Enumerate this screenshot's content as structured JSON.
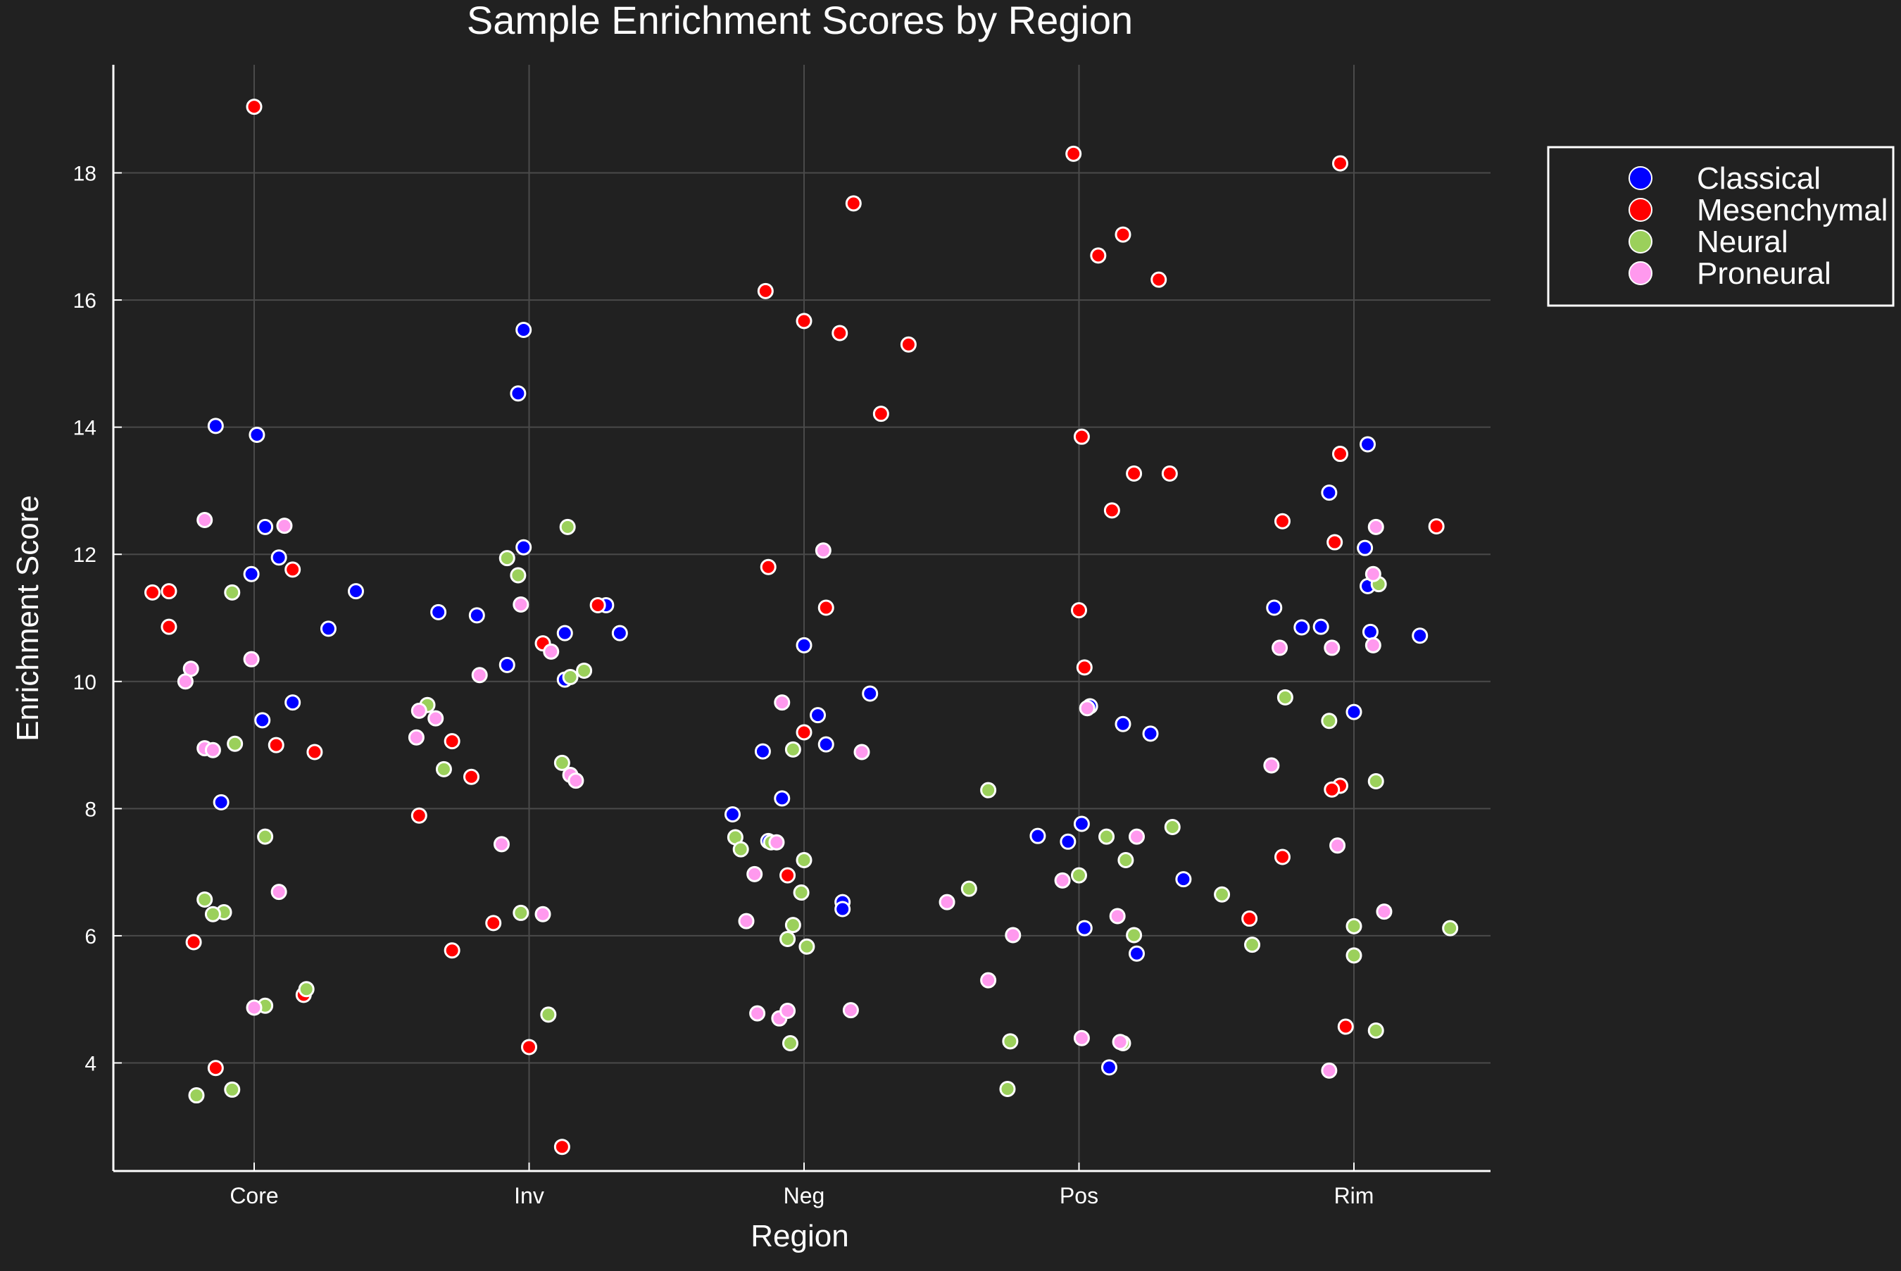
{
  "chart_data": {
    "type": "scatter",
    "title": "Sample Enrichment Scores by Region",
    "xlabel": "Region",
    "ylabel": "Enrichment Score",
    "categories": [
      "Core",
      "Inv",
      "Neg",
      "Pos",
      "Rim"
    ],
    "ylim": [
      2.3,
      19.7
    ],
    "yticks": [
      4,
      6,
      8,
      10,
      12,
      14,
      16,
      18
    ],
    "grid": true,
    "legend_position": "top-right",
    "series": [
      {
        "name": "Classical",
        "color": "#0000ff",
        "points": [
          {
            "x": -0.14,
            "y": 14.02
          },
          {
            "x": 0.01,
            "y": 13.88
          },
          {
            "x": 0.04,
            "y": 12.43
          },
          {
            "x": 0.09,
            "y": 11.95
          },
          {
            "x": -0.01,
            "y": 11.69
          },
          {
            "x": 0.37,
            "y": 11.42
          },
          {
            "x": 0.27,
            "y": 10.83
          },
          {
            "x": 0.14,
            "y": 9.67
          },
          {
            "x": 0.03,
            "y": 9.39
          },
          {
            "x": -0.12,
            "y": 8.1
          },
          {
            "x": 0.98,
            "y": 15.53
          },
          {
            "x": 0.96,
            "y": 14.53
          },
          {
            "x": 0.98,
            "y": 12.11
          },
          {
            "x": 1.28,
            "y": 11.2
          },
          {
            "x": 0.67,
            "y": 11.09
          },
          {
            "x": 0.81,
            "y": 11.04
          },
          {
            "x": 1.13,
            "y": 10.76
          },
          {
            "x": 1.33,
            "y": 10.76
          },
          {
            "x": 0.92,
            "y": 10.26
          },
          {
            "x": 1.13,
            "y": 10.03
          },
          {
            "x": 2.0,
            "y": 10.57
          },
          {
            "x": 2.24,
            "y": 9.81
          },
          {
            "x": 2.05,
            "y": 9.47
          },
          {
            "x": 2.08,
            "y": 9.01
          },
          {
            "x": 1.85,
            "y": 8.9
          },
          {
            "x": 1.92,
            "y": 8.16
          },
          {
            "x": 1.74,
            "y": 7.91
          },
          {
            "x": 1.87,
            "y": 7.49
          },
          {
            "x": 2.14,
            "y": 6.53
          },
          {
            "x": 2.14,
            "y": 6.42
          },
          {
            "x": 3.04,
            "y": 9.61
          },
          {
            "x": 3.16,
            "y": 9.33
          },
          {
            "x": 3.26,
            "y": 9.18
          },
          {
            "x": 3.01,
            "y": 7.76
          },
          {
            "x": 2.85,
            "y": 7.57
          },
          {
            "x": 2.96,
            "y": 7.48
          },
          {
            "x": 3.38,
            "y": 6.89
          },
          {
            "x": 3.02,
            "y": 6.12
          },
          {
            "x": 3.21,
            "y": 5.72
          },
          {
            "x": 3.11,
            "y": 3.93
          },
          {
            "x": 4.05,
            "y": 13.73
          },
          {
            "x": 3.91,
            "y": 12.97
          },
          {
            "x": 4.04,
            "y": 12.1
          },
          {
            "x": 4.05,
            "y": 11.5
          },
          {
            "x": 3.71,
            "y": 11.16
          },
          {
            "x": 3.81,
            "y": 10.85
          },
          {
            "x": 3.88,
            "y": 10.86
          },
          {
            "x": 4.06,
            "y": 10.78
          },
          {
            "x": 4.24,
            "y": 10.72
          },
          {
            "x": 4.0,
            "y": 9.52
          }
        ]
      },
      {
        "name": "Mesenchymal",
        "color": "#ff0000",
        "points": [
          {
            "x": 0.0,
            "y": 19.04
          },
          {
            "x": 0.14,
            "y": 11.76
          },
          {
            "x": -0.37,
            "y": 11.4
          },
          {
            "x": -0.31,
            "y": 11.42
          },
          {
            "x": -0.31,
            "y": 10.86
          },
          {
            "x": 0.08,
            "y": 9.0
          },
          {
            "x": 0.22,
            "y": 8.89
          },
          {
            "x": -0.22,
            "y": 5.9
          },
          {
            "x": 0.18,
            "y": 5.07
          },
          {
            "x": -0.14,
            "y": 3.92
          },
          {
            "x": 1.25,
            "y": 11.2
          },
          {
            "x": 1.05,
            "y": 10.6
          },
          {
            "x": 0.72,
            "y": 9.06
          },
          {
            "x": 0.79,
            "y": 8.5
          },
          {
            "x": 0.6,
            "y": 7.89
          },
          {
            "x": 0.72,
            "y": 5.77
          },
          {
            "x": 0.87,
            "y": 6.2
          },
          {
            "x": 1.0,
            "y": 4.25
          },
          {
            "x": 1.12,
            "y": 2.68
          },
          {
            "x": 1.86,
            "y": 16.14
          },
          {
            "x": 2.18,
            "y": 17.52
          },
          {
            "x": 2.0,
            "y": 15.67
          },
          {
            "x": 2.13,
            "y": 15.48
          },
          {
            "x": 2.38,
            "y": 15.3
          },
          {
            "x": 2.28,
            "y": 14.21
          },
          {
            "x": 1.87,
            "y": 11.8
          },
          {
            "x": 2.08,
            "y": 11.16
          },
          {
            "x": 2.0,
            "y": 9.2
          },
          {
            "x": 1.94,
            "y": 6.95
          },
          {
            "x": 2.98,
            "y": 18.3
          },
          {
            "x": 3.16,
            "y": 17.03
          },
          {
            "x": 3.07,
            "y": 16.7
          },
          {
            "x": 3.29,
            "y": 16.32
          },
          {
            "x": 3.01,
            "y": 13.85
          },
          {
            "x": 3.2,
            "y": 13.27
          },
          {
            "x": 3.33,
            "y": 13.27
          },
          {
            "x": 3.12,
            "y": 12.69
          },
          {
            "x": 3.0,
            "y": 11.12
          },
          {
            "x": 3.02,
            "y": 10.22
          },
          {
            "x": 3.95,
            "y": 18.15
          },
          {
            "x": 3.95,
            "y": 13.58
          },
          {
            "x": 3.74,
            "y": 12.52
          },
          {
            "x": 4.3,
            "y": 12.44
          },
          {
            "x": 3.93,
            "y": 12.19
          },
          {
            "x": 3.95,
            "y": 8.36
          },
          {
            "x": 3.92,
            "y": 8.3
          },
          {
            "x": 3.74,
            "y": 7.24
          },
          {
            "x": 3.62,
            "y": 6.27
          },
          {
            "x": 3.97,
            "y": 4.57
          }
        ]
      },
      {
        "name": "Neural",
        "color": "#9bd05b",
        "points": [
          {
            "x": -0.08,
            "y": 11.4
          },
          {
            "x": -0.07,
            "y": 9.02
          },
          {
            "x": 0.04,
            "y": 7.56
          },
          {
            "x": -0.18,
            "y": 6.57
          },
          {
            "x": -0.11,
            "y": 6.37
          },
          {
            "x": -0.15,
            "y": 6.34
          },
          {
            "x": 0.19,
            "y": 5.16
          },
          {
            "x": 0.04,
            "y": 4.9
          },
          {
            "x": -0.08,
            "y": 3.58
          },
          {
            "x": -0.21,
            "y": 3.49
          },
          {
            "x": 0.92,
            "y": 11.94
          },
          {
            "x": 0.96,
            "y": 11.67
          },
          {
            "x": 1.14,
            "y": 12.43
          },
          {
            "x": 1.2,
            "y": 10.17
          },
          {
            "x": 1.15,
            "y": 10.07
          },
          {
            "x": 0.63,
            "y": 9.63
          },
          {
            "x": 1.12,
            "y": 8.72
          },
          {
            "x": 0.69,
            "y": 8.62
          },
          {
            "x": 0.97,
            "y": 6.36
          },
          {
            "x": 1.07,
            "y": 4.76
          },
          {
            "x": 1.88,
            "y": 7.47
          },
          {
            "x": 1.75,
            "y": 7.55
          },
          {
            "x": 1.77,
            "y": 7.36
          },
          {
            "x": 2.0,
            "y": 7.19
          },
          {
            "x": 1.99,
            "y": 6.68
          },
          {
            "x": 1.96,
            "y": 6.17
          },
          {
            "x": 1.94,
            "y": 5.95
          },
          {
            "x": 2.01,
            "y": 5.83
          },
          {
            "x": 1.95,
            "y": 4.31
          },
          {
            "x": 1.96,
            "y": 8.93
          },
          {
            "x": 2.67,
            "y": 8.29
          },
          {
            "x": 3.34,
            "y": 7.71
          },
          {
            "x": 3.1,
            "y": 7.56
          },
          {
            "x": 3.17,
            "y": 7.19
          },
          {
            "x": 3.0,
            "y": 6.95
          },
          {
            "x": 2.6,
            "y": 6.74
          },
          {
            "x": 3.2,
            "y": 6.01
          },
          {
            "x": 2.75,
            "y": 4.34
          },
          {
            "x": 3.16,
            "y": 4.31
          },
          {
            "x": 2.74,
            "y": 3.59
          },
          {
            "x": 4.09,
            "y": 11.53
          },
          {
            "x": 3.75,
            "y": 9.75
          },
          {
            "x": 3.91,
            "y": 9.38
          },
          {
            "x": 4.08,
            "y": 8.43
          },
          {
            "x": 3.52,
            "y": 6.65
          },
          {
            "x": 4.0,
            "y": 6.15
          },
          {
            "x": 4.35,
            "y": 6.12
          },
          {
            "x": 3.63,
            "y": 5.86
          },
          {
            "x": 4.0,
            "y": 5.69
          },
          {
            "x": 4.08,
            "y": 4.51
          }
        ]
      },
      {
        "name": "Proneural",
        "color": "#ff99ee",
        "points": [
          {
            "x": -0.18,
            "y": 12.54
          },
          {
            "x": 0.11,
            "y": 12.45
          },
          {
            "x": -0.01,
            "y": 10.35
          },
          {
            "x": -0.23,
            "y": 10.2
          },
          {
            "x": -0.25,
            "y": 10.0
          },
          {
            "x": -0.18,
            "y": 8.95
          },
          {
            "x": -0.15,
            "y": 8.92
          },
          {
            "x": 0.09,
            "y": 6.69
          },
          {
            "x": 0.0,
            "y": 4.87
          },
          {
            "x": 0.97,
            "y": 11.21
          },
          {
            "x": 0.82,
            "y": 10.1
          },
          {
            "x": 1.08,
            "y": 10.47
          },
          {
            "x": 0.6,
            "y": 9.54
          },
          {
            "x": 0.66,
            "y": 9.42
          },
          {
            "x": 0.59,
            "y": 9.12
          },
          {
            "x": 1.15,
            "y": 8.53
          },
          {
            "x": 1.17,
            "y": 8.44
          },
          {
            "x": 0.9,
            "y": 7.44
          },
          {
            "x": 1.05,
            "y": 6.34
          },
          {
            "x": 2.07,
            "y": 12.06
          },
          {
            "x": 1.92,
            "y": 9.67
          },
          {
            "x": 2.21,
            "y": 8.89
          },
          {
            "x": 1.9,
            "y": 7.47
          },
          {
            "x": 1.82,
            "y": 6.97
          },
          {
            "x": 1.79,
            "y": 6.23
          },
          {
            "x": 1.83,
            "y": 4.78
          },
          {
            "x": 1.91,
            "y": 4.7
          },
          {
            "x": 1.94,
            "y": 4.82
          },
          {
            "x": 2.17,
            "y": 4.83
          },
          {
            "x": 3.03,
            "y": 9.58
          },
          {
            "x": 3.21,
            "y": 7.56
          },
          {
            "x": 2.94,
            "y": 6.87
          },
          {
            "x": 3.14,
            "y": 6.31
          },
          {
            "x": 2.52,
            "y": 6.53
          },
          {
            "x": 2.76,
            "y": 6.01
          },
          {
            "x": 2.67,
            "y": 5.3
          },
          {
            "x": 3.01,
            "y": 4.39
          },
          {
            "x": 3.15,
            "y": 4.33
          },
          {
            "x": 4.08,
            "y": 12.43
          },
          {
            "x": 4.07,
            "y": 11.69
          },
          {
            "x": 3.73,
            "y": 10.53
          },
          {
            "x": 3.92,
            "y": 10.53
          },
          {
            "x": 4.07,
            "y": 10.57
          },
          {
            "x": 3.7,
            "y": 8.68
          },
          {
            "x": 3.94,
            "y": 7.42
          },
          {
            "x": 4.11,
            "y": 6.38
          },
          {
            "x": 3.91,
            "y": 3.88
          }
        ]
      }
    ]
  }
}
